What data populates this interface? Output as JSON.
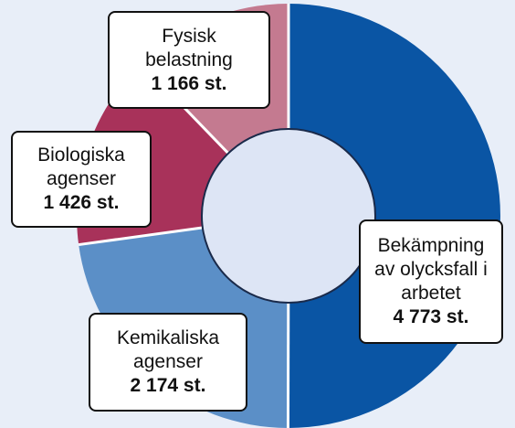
{
  "chart_data": {
    "type": "donut",
    "categories": [
      "Bekämpning av olycksfall i arbetet",
      "Kemikaliska agenser",
      "Biologiska agenser",
      "Fysisk belastning"
    ],
    "values": [
      4773,
      2174,
      1426,
      1166
    ],
    "value_labels": [
      "4 773 st.",
      "2 174 st.",
      "1 426 st.",
      "1 166 st."
    ],
    "colors": [
      "#0a55a4",
      "#5b8fc7",
      "#a8325a",
      "#c47a90"
    ]
  }
}
